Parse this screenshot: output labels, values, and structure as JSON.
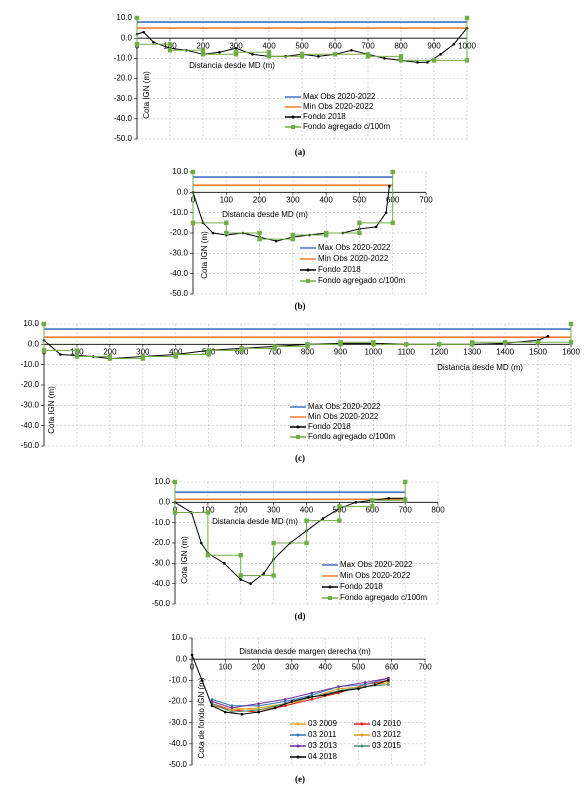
{
  "chart_data": [
    {
      "type": "line",
      "caption": "(a)",
      "x_label": "Distancia desde MD (m)",
      "y_label": "Cota IGN (m)",
      "xlim": [
        0,
        1000
      ],
      "xticks": [
        0,
        100,
        200,
        300,
        400,
        500,
        600,
        700,
        800,
        900,
        1000
      ],
      "ylim": [
        -50,
        10
      ],
      "yticks": [
        {
          "value": 10,
          "label": "10.0"
        },
        {
          "value": 0,
          "label": "0.0"
        },
        {
          "value": -10,
          "label": "-10.0"
        },
        {
          "value": -20,
          "label": "-20.0"
        },
        {
          "value": -30,
          "label": "-30.0"
        },
        {
          "value": -40,
          "label": "-40.0"
        },
        {
          "value": -50,
          "label": "-50.0"
        }
      ],
      "grid": true,
      "series": [
        {
          "name": "Max Obs 2020-2022",
          "color": "#4472c4",
          "marker": "none",
          "x": [
            0,
            1000
          ],
          "values": [
            8,
            8
          ]
        },
        {
          "name": "Min Obs 2020-2022",
          "color": "#ed7d31",
          "marker": "none",
          "x": [
            0,
            1000
          ],
          "values": [
            5,
            5
          ]
        },
        {
          "name": "Fondo 2018",
          "color": "#000000",
          "marker": "dot",
          "x": [
            0,
            20,
            50,
            100,
            150,
            200,
            250,
            300,
            350,
            400,
            450,
            500,
            550,
            600,
            650,
            700,
            750,
            800,
            850,
            880,
            920,
            960,
            1000
          ],
          "values": [
            2,
            3,
            -2,
            -5,
            -6,
            -8,
            -7,
            -5,
            -8,
            -9,
            -9,
            -8,
            -9,
            -8,
            -6,
            -8,
            -10,
            -11,
            -12,
            -12,
            -8,
            -3,
            5
          ]
        },
        {
          "name": "Fondo agregado c/100m",
          "color": "#70ad47",
          "marker": "square",
          "x": [
            0,
            0,
            100,
            100,
            200,
            200,
            300,
            300,
            400,
            400,
            500,
            500,
            600,
            600,
            700,
            700,
            800,
            800,
            900,
            900,
            1000,
            1000
          ],
          "values": [
            10,
            -3,
            -3,
            -6,
            -6,
            -8,
            -8,
            -7,
            -7,
            -9,
            -9,
            -8,
            -8,
            -8,
            -8,
            -9,
            -9,
            -11,
            -11,
            -11,
            -11,
            10
          ]
        }
      ]
    },
    {
      "type": "line",
      "caption": "(b)",
      "x_label": "Distancia desde MD (m)",
      "y_label": "Cota IGN (m)",
      "xlim": [
        0,
        700
      ],
      "xticks": [
        0,
        100,
        200,
        300,
        400,
        500,
        600,
        700
      ],
      "ylim": [
        -50,
        10
      ],
      "yticks": [
        {
          "value": 10,
          "label": "10.0"
        },
        {
          "value": 0,
          "label": "0.0"
        },
        {
          "value": -10,
          "label": "-10.0"
        },
        {
          "value": -20,
          "label": "-20.0"
        },
        {
          "value": -30,
          "label": "-30.0"
        },
        {
          "value": -40,
          "label": "-40.0"
        },
        {
          "value": -50,
          "label": "-50.0"
        }
      ],
      "grid": true,
      "series": [
        {
          "name": "Max Obs 2020-2022",
          "color": "#4472c4",
          "marker": "none",
          "x": [
            0,
            600
          ],
          "values": [
            7.5,
            7.5
          ]
        },
        {
          "name": "Min Obs 2020-2022",
          "color": "#ed7d31",
          "marker": "none",
          "x": [
            0,
            600
          ],
          "values": [
            3.5,
            3.5
          ]
        },
        {
          "name": "Fondo 2018",
          "color": "#000000",
          "marker": "dot",
          "x": [
            0,
            30,
            60,
            100,
            150,
            200,
            250,
            300,
            350,
            400,
            450,
            500,
            550,
            580,
            590
          ],
          "values": [
            0,
            -15,
            -20,
            -21,
            -20,
            -22,
            -24,
            -22,
            -21,
            -20,
            -20,
            -18,
            -17,
            -10,
            3
          ]
        },
        {
          "name": "Fondo agregado c/100m",
          "color": "#70ad47",
          "marker": "square",
          "x": [
            0,
            0,
            100,
            100,
            200,
            200,
            300,
            300,
            400,
            400,
            500,
            500,
            600,
            600
          ],
          "values": [
            10,
            -15,
            -15,
            -20,
            -20,
            -23,
            -23,
            -21,
            -21,
            -20,
            -20,
            -15,
            -15,
            10
          ]
        }
      ]
    },
    {
      "type": "line",
      "caption": "(c)",
      "x_label": "Distancia desde MD (m)",
      "y_label": "Cota IGN (m)",
      "xlim": [
        0,
        1600
      ],
      "xticks": [
        0,
        100,
        200,
        300,
        400,
        500,
        600,
        700,
        800,
        900,
        1000,
        1100,
        1200,
        1300,
        1400,
        1500,
        1600
      ],
      "ylim": [
        -50,
        10
      ],
      "yticks": [
        {
          "value": 10,
          "label": "10.0"
        },
        {
          "value": 0,
          "label": "0.0"
        },
        {
          "value": -10,
          "label": "-10.0"
        },
        {
          "value": -20,
          "label": "-20.0"
        },
        {
          "value": -30,
          "label": "-30.0"
        },
        {
          "value": -40,
          "label": "-40.0"
        },
        {
          "value": -50,
          "label": "-50.0"
        }
      ],
      "grid": true,
      "series": [
        {
          "name": "Max Obs 2020-2022",
          "color": "#4472c4",
          "marker": "none",
          "x": [
            0,
            1600
          ],
          "values": [
            7.5,
            7.5
          ]
        },
        {
          "name": "Min Obs 2020-2022",
          "color": "#ed7d31",
          "marker": "none",
          "x": [
            0,
            1600
          ],
          "values": [
            3.5,
            3.5
          ]
        },
        {
          "name": "Fondo 2018",
          "color": "#000000",
          "marker": "dot",
          "x": [
            0,
            50,
            150,
            200,
            300,
            400,
            500,
            600,
            700,
            800,
            900,
            1000,
            1100,
            1200,
            1300,
            1400,
            1500,
            1530
          ],
          "values": [
            2,
            -5,
            -6,
            -7,
            -6,
            -5,
            -3,
            -2,
            -1,
            0,
            0.5,
            0.5,
            0,
            0,
            0,
            0.5,
            2,
            4
          ]
        },
        {
          "name": "Fondo agregado c/100m",
          "color": "#70ad47",
          "marker": "square",
          "x": [
            0,
            0,
            100,
            100,
            200,
            200,
            300,
            300,
            400,
            400,
            500,
            500,
            600,
            600,
            700,
            700,
            800,
            800,
            900,
            900,
            1000,
            1000,
            1100,
            1100,
            1200,
            1200,
            1300,
            1300,
            1400,
            1400,
            1500,
            1500,
            1600,
            1600
          ],
          "values": [
            10,
            -3,
            -3,
            -6,
            -6,
            -7,
            -7,
            -6,
            -6,
            -5,
            -5,
            -3,
            -3,
            -2,
            -2,
            -1,
            -1,
            0,
            0,
            1,
            1,
            0,
            0,
            0,
            0,
            0,
            0,
            1,
            1,
            1,
            1,
            1,
            1,
            10
          ]
        }
      ]
    },
    {
      "type": "line",
      "caption": "(d)",
      "x_label": "Distancia desde MD (m)",
      "y_label": "Cota IGN (m)",
      "xlim": [
        0,
        800
      ],
      "xticks": [
        0,
        100,
        200,
        300,
        400,
        500,
        600,
        700,
        800
      ],
      "ylim": [
        -50,
        10
      ],
      "yticks": [
        {
          "value": 10,
          "label": "10.0"
        },
        {
          "value": 0,
          "label": "0.0"
        },
        {
          "value": -10,
          "label": "-10.0"
        },
        {
          "value": -20,
          "label": "-20.0"
        },
        {
          "value": -30,
          "label": "-30.0"
        },
        {
          "value": -40,
          "label": "-40.0"
        },
        {
          "value": -50,
          "label": "-50.0"
        }
      ],
      "grid": true,
      "series": [
        {
          "name": "Max Obs 2020-2022",
          "color": "#4472c4",
          "marker": "none",
          "x": [
            0,
            700
          ],
          "values": [
            5,
            5
          ]
        },
        {
          "name": "Min Obs 2020-2022",
          "color": "#ed7d31",
          "marker": "none",
          "x": [
            0,
            700
          ],
          "values": [
            1.5,
            1.5
          ]
        },
        {
          "name": "Fondo 2018",
          "color": "#000000",
          "marker": "dot",
          "x": [
            0,
            50,
            80,
            100,
            150,
            200,
            230,
            270,
            300,
            350,
            400,
            450,
            500,
            550,
            600,
            650,
            700
          ],
          "values": [
            0,
            -5,
            -20,
            -25,
            -30,
            -38,
            -40,
            -35,
            -28,
            -20,
            -14,
            -8,
            -3,
            0,
            1,
            2,
            2
          ]
        },
        {
          "name": "Fondo agregado c/100m",
          "color": "#70ad47",
          "marker": "square",
          "x": [
            0,
            0,
            100,
            100,
            200,
            200,
            300,
            300,
            400,
            400,
            500,
            500,
            600,
            600,
            700,
            700
          ],
          "values": [
            10,
            -5,
            -5,
            -26,
            -26,
            -36,
            -36,
            -20,
            -20,
            -9,
            -9,
            -2,
            -2,
            1,
            1,
            10
          ]
        }
      ]
    },
    {
      "type": "line",
      "caption": "(e)",
      "x_label": "Distancia desde margen derecha (m)",
      "y_label": "Cota de fondo IGN (m)",
      "xlim": [
        0,
        700
      ],
      "xticks": [
        0,
        100,
        200,
        300,
        400,
        500,
        600,
        700
      ],
      "ylim": [
        -50,
        10
      ],
      "yticks": [
        {
          "value": 10,
          "label": "10.0"
        },
        {
          "value": 0,
          "label": "0.0"
        },
        {
          "value": -10,
          "label": "-10.0"
        },
        {
          "value": -20,
          "label": "-20.0"
        },
        {
          "value": -30,
          "label": "-30.0"
        },
        {
          "value": -40,
          "label": "-40.0"
        },
        {
          "value": -50,
          "label": "-50.0"
        }
      ],
      "grid": true,
      "series": [
        {
          "name": "03 2009",
          "color": "#f5a623",
          "marker": "dot",
          "x": [
            60,
            120,
            200,
            280,
            360,
            440,
            520,
            590
          ],
          "values": [
            -20,
            -23,
            -24,
            -22,
            -18,
            -15,
            -13,
            -11
          ]
        },
        {
          "name": "04 2010",
          "color": "#e02020",
          "marker": "dot",
          "x": [
            60,
            120,
            200,
            280,
            360,
            440,
            520,
            590
          ],
          "values": [
            -21,
            -24,
            -25,
            -22,
            -19,
            -16,
            -12,
            -10
          ]
        },
        {
          "name": "03 2011",
          "color": "#2e75b6",
          "marker": "dot",
          "x": [
            60,
            120,
            200,
            280,
            360,
            440,
            520,
            590
          ],
          "values": [
            -19,
            -22,
            -22,
            -20,
            -17,
            -13,
            -12,
            -9
          ]
        },
        {
          "name": "03 2012",
          "color": "#d4a017",
          "marker": "dot",
          "x": [
            60,
            120,
            200,
            280,
            360,
            440,
            520,
            590
          ],
          "values": [
            -22,
            -24,
            -23,
            -21,
            -18,
            -14,
            -13,
            -11
          ]
        },
        {
          "name": "03 2013",
          "color": "#7030a0",
          "marker": "dot",
          "x": [
            60,
            120,
            200,
            280,
            360,
            440,
            520,
            590
          ],
          "values": [
            -20,
            -23,
            -21,
            -19,
            -16,
            -13,
            -11,
            -9
          ]
        },
        {
          "name": "03 2015",
          "color": "#4e8a6e",
          "marker": "dot",
          "x": [
            60,
            120,
            200,
            280,
            360,
            440,
            520,
            590
          ],
          "values": [
            -21,
            -25,
            -24,
            -21,
            -18,
            -15,
            -13,
            -12
          ]
        },
        {
          "name": "04 2018",
          "color": "#000000",
          "marker": "dot",
          "x": [
            0,
            30,
            60,
            100,
            150,
            200,
            250,
            300,
            350,
            400,
            450,
            500,
            550,
            590
          ],
          "values": [
            2,
            -10,
            -22,
            -25,
            -26,
            -25,
            -23,
            -20,
            -18,
            -17,
            -15,
            -14,
            -12,
            -10
          ]
        }
      ]
    }
  ]
}
